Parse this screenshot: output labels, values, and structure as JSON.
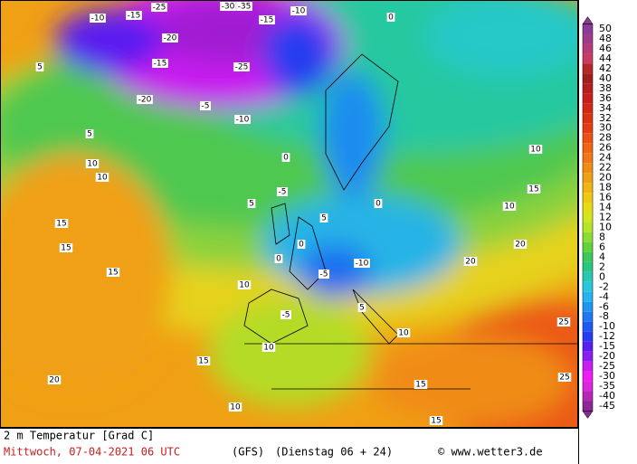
{
  "legend": {
    "items": [
      {
        "value": 50,
        "color": "#8c3c96"
      },
      {
        "value": 48,
        "color": "#a03c8c"
      },
      {
        "value": 46,
        "color": "#b43c78"
      },
      {
        "value": 44,
        "color": "#c83c64"
      },
      {
        "value": 42,
        "color": "#b42828"
      },
      {
        "value": 40,
        "color": "#a01e1e"
      },
      {
        "value": 38,
        "color": "#b41e1e"
      },
      {
        "value": 36,
        "color": "#c81e1e"
      },
      {
        "value": 34,
        "color": "#d22814"
      },
      {
        "value": 32,
        "color": "#dc3214"
      },
      {
        "value": 30,
        "color": "#e63c14"
      },
      {
        "value": 28,
        "color": "#eb5014"
      },
      {
        "value": 26,
        "color": "#f06414"
      },
      {
        "value": 24,
        "color": "#f07814"
      },
      {
        "value": 22,
        "color": "#f08c14"
      },
      {
        "value": 20,
        "color": "#f0a014"
      },
      {
        "value": 18,
        "color": "#f0b414"
      },
      {
        "value": 16,
        "color": "#f0c814"
      },
      {
        "value": 14,
        "color": "#e6dc14"
      },
      {
        "value": 12,
        "color": "#d2e61e"
      },
      {
        "value": 10,
        "color": "#b4e628"
      },
      {
        "value": 8,
        "color": "#8cdc32"
      },
      {
        "value": 6,
        "color": "#64d23c"
      },
      {
        "value": 4,
        "color": "#3cc85a"
      },
      {
        "value": 2,
        "color": "#28c882"
      },
      {
        "value": 0,
        "color": "#28c8b4"
      },
      {
        "value": -2,
        "color": "#28c8dc"
      },
      {
        "value": -4,
        "color": "#28b4f0"
      },
      {
        "value": -6,
        "color": "#1e96f0"
      },
      {
        "value": -8,
        "color": "#1e78f0"
      },
      {
        "value": -10,
        "color": "#1e5af0"
      },
      {
        "value": -12,
        "color": "#283cf0"
      },
      {
        "value": -15,
        "color": "#5a1ef0"
      },
      {
        "value": -20,
        "color": "#8c1ef0"
      },
      {
        "value": -25,
        "color": "#c81ef0"
      },
      {
        "value": -30,
        "color": "#f01ef0"
      },
      {
        "value": -35,
        "color": "#dc28dc"
      },
      {
        "value": -40,
        "color": "#b428b4"
      },
      {
        "value": -45,
        "color": "#8c2896"
      }
    ]
  },
  "map_labels": [
    -10,
    -15,
    -25,
    -20,
    -30,
    -35,
    -10,
    -15,
    -20,
    -25,
    -5,
    -15,
    -10,
    0,
    0,
    5,
    5,
    10,
    10,
    15,
    15,
    15,
    20,
    10,
    0,
    -5,
    0,
    5,
    -5,
    -10,
    -5,
    0,
    5,
    10,
    15,
    20,
    25,
    25,
    15,
    10,
    5,
    10,
    15,
    20,
    10,
    15,
    10
  ],
  "footer": {
    "title": "2 m Temperatur [Grad C]",
    "date": "Mittwoch, 07-04-2021  06 UTC",
    "model": "(GFS)",
    "forecast": "(Dienstag 06 + 24)",
    "credit": "© www.wetter3.de"
  }
}
